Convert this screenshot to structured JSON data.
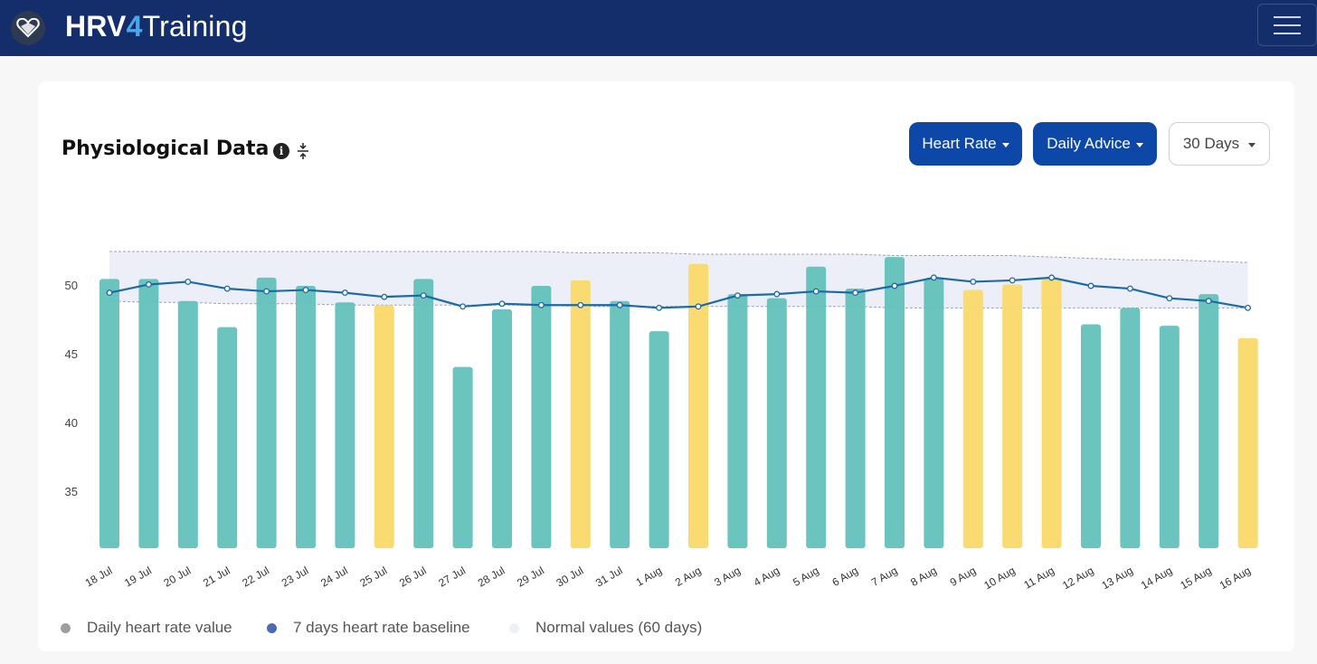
{
  "app": {
    "brand_prefix": "HRV",
    "brand_digit": "4",
    "brand_suffix": "Training",
    "logo_icon": "heart-logo-icon",
    "menu_icon": "hamburger-menu-icon"
  },
  "panel": {
    "title": "Physiological Data",
    "info_icon": "info-icon",
    "collapse_icon": "collapse-vertical-icon"
  },
  "controls": {
    "metric_label": "Heart Rate",
    "advice_label": "Daily Advice",
    "range_label": "30 Days"
  },
  "colors": {
    "navbar": "#142d6b",
    "good": "#63c1bb",
    "caution": "#fad96a",
    "baseline": "#1e6aa8",
    "band": "#e9ecf7",
    "button": "#0d47a8"
  },
  "chart_data": {
    "type": "bar",
    "title": "",
    "xlabel": "",
    "ylabel": "",
    "ylim": [
      31,
      55
    ],
    "yticks": [
      35,
      40,
      45,
      50
    ],
    "categories": [
      "18 Jul",
      "19 Jul",
      "20 Jul",
      "21 Jul",
      "22 Jul",
      "23 Jul",
      "24 Jul",
      "25 Jul",
      "26 Jul",
      "27 Jul",
      "28 Jul",
      "29 Jul",
      "30 Jul",
      "31 Jul",
      "1 Aug",
      "2 Aug",
      "3 Aug",
      "4 Aug",
      "5 Aug",
      "6 Aug",
      "7 Aug",
      "8 Aug",
      "9 Aug",
      "10 Aug",
      "11 Aug",
      "12 Aug",
      "13 Aug",
      "14 Aug",
      "15 Aug",
      "16 Aug"
    ],
    "series": [
      {
        "name": "Daily heart rate value",
        "values": [
          50.5,
          50.5,
          48.9,
          47.0,
          50.6,
          50.0,
          48.8,
          48.6,
          50.5,
          44.1,
          48.3,
          50.0,
          50.4,
          48.9,
          46.7,
          51.6,
          49.4,
          49.1,
          51.4,
          49.8,
          52.1,
          50.5,
          49.7,
          50.1,
          50.5,
          47.2,
          48.4,
          47.1,
          49.4,
          46.2
        ],
        "advice": [
          "good",
          "good",
          "good",
          "good",
          "good",
          "good",
          "good",
          "caution",
          "good",
          "good",
          "good",
          "good",
          "caution",
          "good",
          "good",
          "caution",
          "good",
          "good",
          "good",
          "good",
          "good",
          "good",
          "caution",
          "caution",
          "caution",
          "good",
          "good",
          "good",
          "good",
          "caution"
        ]
      },
      {
        "name": "7 days heart rate baseline",
        "values": [
          49.5,
          50.1,
          50.3,
          49.8,
          49.6,
          49.7,
          49.5,
          49.2,
          49.3,
          48.5,
          48.7,
          48.6,
          48.6,
          48.6,
          48.4,
          48.5,
          49.3,
          49.4,
          49.6,
          49.5,
          50.0,
          50.6,
          50.3,
          50.4,
          50.6,
          50.0,
          49.8,
          49.1,
          48.9,
          48.4
        ]
      },
      {
        "name": "Normal values (60 days)",
        "upper": [
          52.5,
          52.5,
          52.5,
          52.5,
          52.5,
          52.5,
          52.5,
          52.5,
          52.5,
          52.5,
          52.5,
          52.5,
          52.4,
          52.4,
          52.4,
          52.3,
          52.3,
          52.3,
          52.3,
          52.3,
          52.2,
          52.2,
          52.2,
          52.2,
          52.1,
          52.0,
          51.9,
          51.9,
          51.8,
          51.7
        ],
        "lower": [
          48.9,
          48.8,
          48.8,
          48.7,
          48.7,
          48.7,
          48.6,
          48.6,
          48.6,
          48.6,
          48.6,
          48.6,
          48.5,
          48.5,
          48.5,
          48.5,
          48.5,
          48.5,
          48.5,
          48.5,
          48.4,
          48.4,
          48.4,
          48.4,
          48.4,
          48.4,
          48.4,
          48.4,
          48.4,
          48.4
        ]
      }
    ],
    "legend": [
      {
        "label": "Daily heart rate value",
        "color": "#9e9e9e"
      },
      {
        "label": "7 days heart rate baseline",
        "color": "#4a6bb5"
      },
      {
        "label": "Normal values (60 days)",
        "color": "#eef0f8"
      }
    ],
    "legend_position": "bottom-left"
  }
}
